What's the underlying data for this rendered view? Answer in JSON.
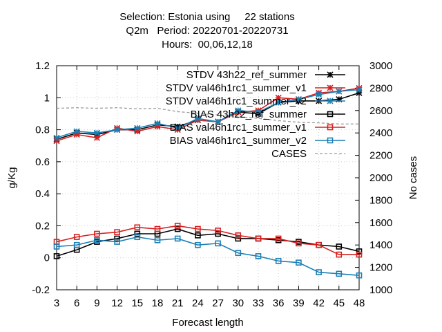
{
  "title_lines": [
    "Selection: Estonia using     22 stations",
    "Q2m   Period: 20220701-20220731",
    "Hours:  00,06,12,18"
  ],
  "chart_data": {
    "type": "line",
    "xlabel": "Forecast length",
    "ylabel": "g/Kg",
    "y2label": "No cases",
    "x": [
      3,
      6,
      9,
      12,
      15,
      18,
      21,
      24,
      27,
      30,
      33,
      36,
      39,
      42,
      45,
      48
    ],
    "ylim": [
      -0.2,
      1.2
    ],
    "y2lim": [
      1000,
      3000
    ],
    "yticks": [
      "-0.2",
      "0",
      "0.2",
      "0.4",
      "0.6",
      "0.8",
      "1",
      "1.2"
    ],
    "y2ticks": [
      "1000",
      "1200",
      "1400",
      "1600",
      "1800",
      "2000",
      "2200",
      "2400",
      "2600",
      "2800",
      "3000"
    ],
    "legend_position": "top-right",
    "series": [
      {
        "name": "STDV 43h22_ref_summer",
        "axis": "y",
        "color": "#000000",
        "marker": "star",
        "dash": false,
        "values": [
          0.74,
          0.78,
          0.77,
          0.8,
          0.8,
          0.83,
          0.82,
          0.86,
          0.85,
          0.91,
          0.9,
          0.97,
          0.98,
          0.98,
          0.99,
          1.03
        ]
      },
      {
        "name": "STDV val46h1rc1_summer_v1",
        "axis": "y",
        "color": "#d62020",
        "marker": "star",
        "dash": false,
        "values": [
          0.73,
          0.77,
          0.75,
          0.81,
          0.79,
          0.82,
          0.8,
          0.86,
          0.85,
          0.91,
          0.92,
          1.0,
          0.99,
          1.03,
          1.04,
          1.06
        ]
      },
      {
        "name": "STDV val46h1rc1_summer_v2",
        "axis": "y",
        "color": "#1a7fb5",
        "marker": "star",
        "dash": false,
        "values": [
          0.75,
          0.79,
          0.78,
          0.8,
          0.81,
          0.84,
          0.81,
          0.87,
          0.85,
          0.92,
          0.91,
          0.97,
          0.99,
          1.02,
          1.04,
          1.05
        ]
      },
      {
        "name": "BIAS 43h22_ref_summer",
        "axis": "y",
        "color": "#000000",
        "marker": "square",
        "dash": false,
        "values": [
          0.01,
          0.05,
          0.1,
          0.12,
          0.15,
          0.15,
          0.18,
          0.14,
          0.15,
          0.12,
          0.12,
          0.11,
          0.1,
          0.08,
          0.07,
          0.04
        ]
      },
      {
        "name": "BIAS val46h1rc1_summer_v1",
        "axis": "y",
        "color": "#d62020",
        "marker": "square",
        "dash": false,
        "values": [
          0.1,
          0.13,
          0.15,
          0.16,
          0.19,
          0.18,
          0.2,
          0.18,
          0.17,
          0.14,
          0.12,
          0.12,
          0.09,
          0.08,
          0.02,
          0.02
        ]
      },
      {
        "name": "BIAS val46h1rc1_summer_v2",
        "axis": "y",
        "color": "#1a7fb5",
        "marker": "square",
        "dash": false,
        "values": [
          0.07,
          0.08,
          0.11,
          0.1,
          0.13,
          0.11,
          0.12,
          0.08,
          0.09,
          0.03,
          0.01,
          -0.02,
          -0.03,
          -0.09,
          -0.1,
          -0.11
        ]
      },
      {
        "name": "CASES",
        "axis": "y2",
        "color": "#999999",
        "marker": "none",
        "dash": true,
        "values": [
          2620,
          2625,
          2620,
          2625,
          2615,
          2620,
          2590,
          2575,
          2560,
          2545,
          2530,
          2510,
          2495,
          2490,
          2480,
          2480
        ]
      }
    ]
  }
}
